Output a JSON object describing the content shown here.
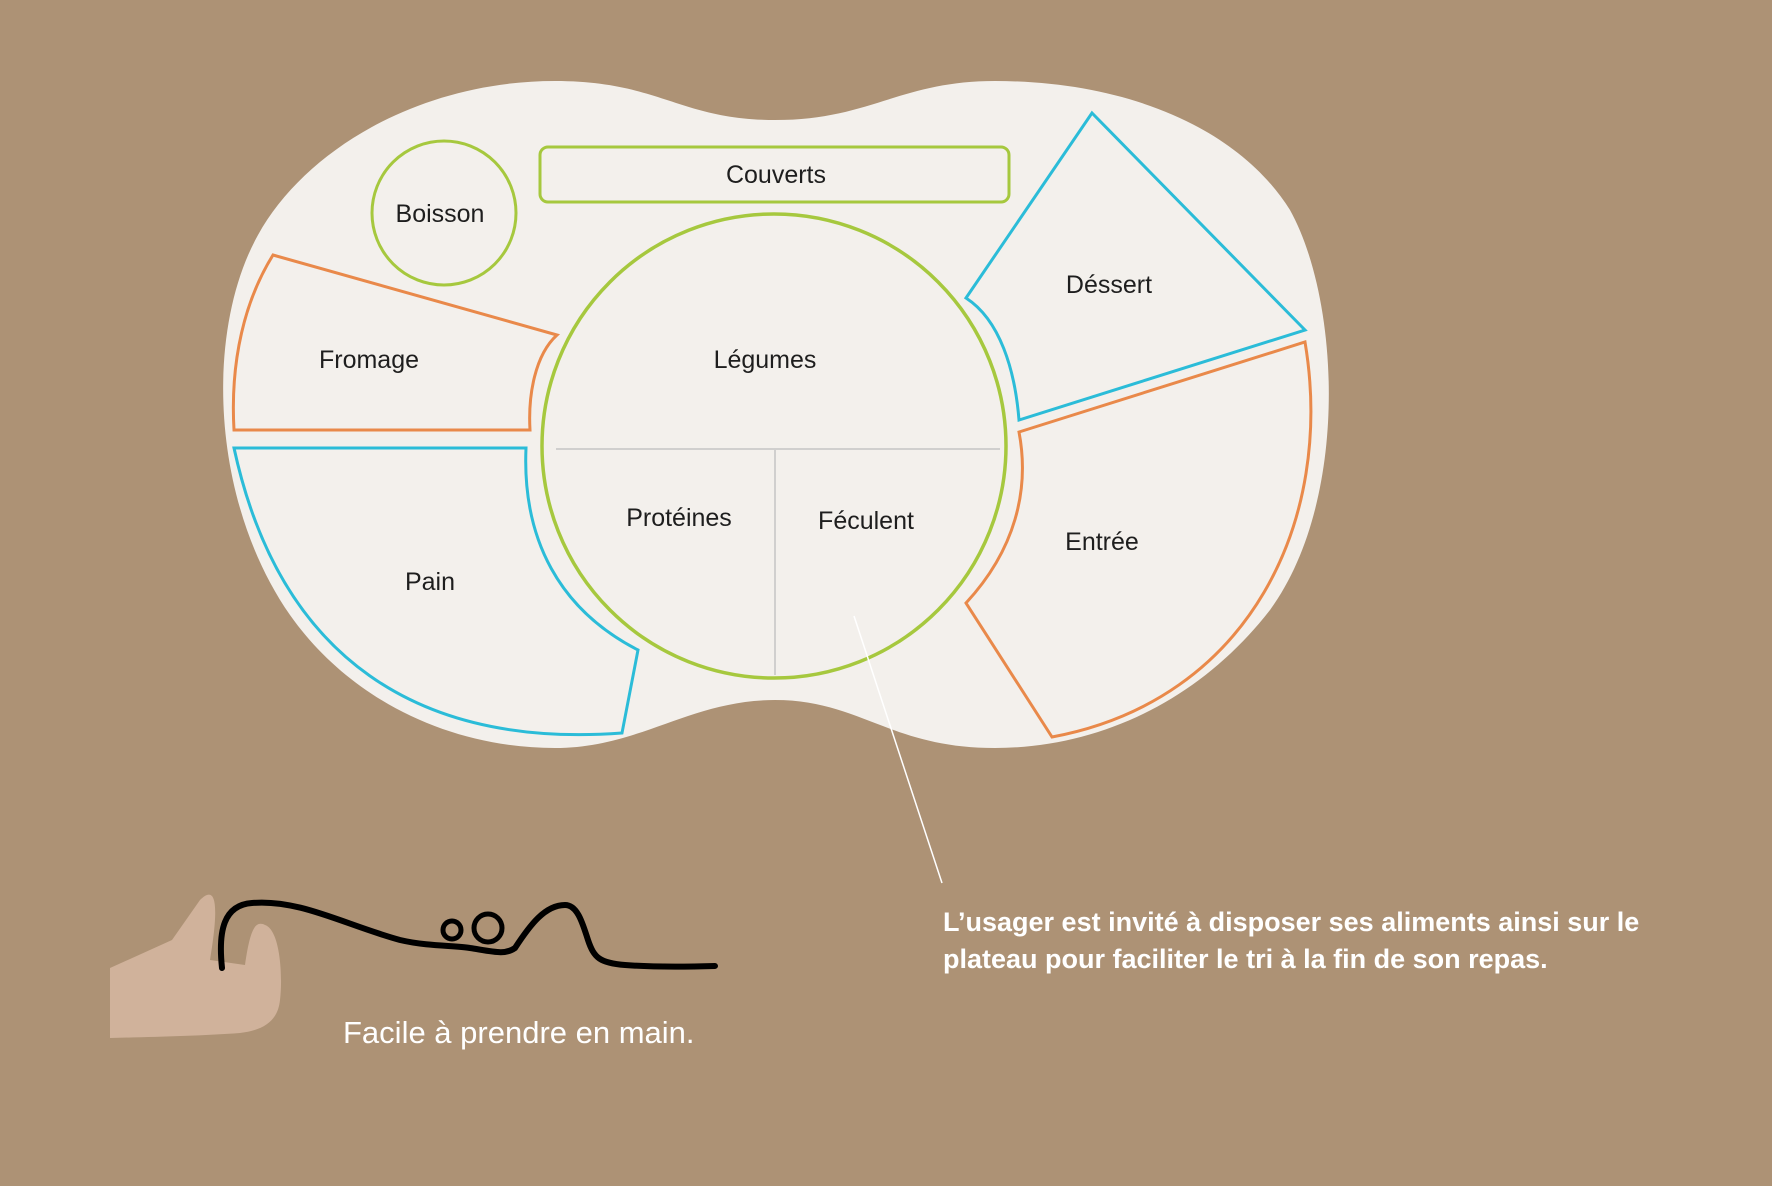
{
  "tray": {
    "compartments": {
      "boisson": "Boisson",
      "couverts": "Couverts",
      "fromage": "Fromage",
      "legumes": "Légumes",
      "proteines": "Protéines",
      "feculent": "Féculent",
      "pain": "Pain",
      "dessert": "Déssert",
      "entree": "Entrée"
    },
    "colors": {
      "background": "#ad9275",
      "tray": "#f3f0ec",
      "green": "#a6c83e",
      "blue": "#2bbcd8",
      "orange": "#e9894a",
      "divider": "#c4c4c4",
      "hand": "#d0b29b"
    }
  },
  "caption": "Facile à prendre en main.",
  "note": "L’usager est invité à  disposer ses aliments ainsi sur le plateau pour faciliter le tri à la fin de son repas."
}
